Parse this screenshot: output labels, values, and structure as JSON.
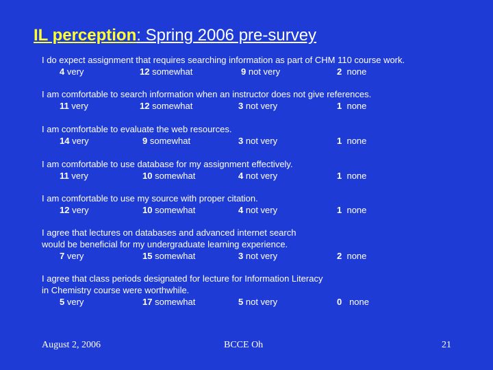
{
  "slide": {
    "title_highlight": "IL perception",
    "title_rest": ": Spring 2006 pre-survey ",
    "questions": [
      {
        "lines": [
          "I do expect assignment that requires searching information as part of CHM 110 course work."
        ],
        "answers": [
          {
            "count": "4",
            "label": "very"
          },
          {
            "count": "12",
            "label": "somewhat"
          },
          {
            "count": "9",
            "label": "not very"
          },
          {
            "count": "2",
            "label": "none"
          }
        ]
      },
      {
        "lines": [
          "I am comfortable to search information when an instructor does not give references."
        ],
        "answers": [
          {
            "count": "11",
            "label": "very"
          },
          {
            "count": "12",
            "label": "somewhat"
          },
          {
            "count": "3",
            "label": "not very"
          },
          {
            "count": "1",
            "label": "none"
          }
        ]
      },
      {
        "lines": [
          "I am comfortable to evaluate the web resources."
        ],
        "answers": [
          {
            "count": "14",
            "label": "very"
          },
          {
            "count": "9",
            "label": "somewhat"
          },
          {
            "count": "3",
            "label": "not very"
          },
          {
            "count": "1",
            "label": "none"
          }
        ]
      },
      {
        "lines": [
          "I am comfortable to use database for my assignment effectively."
        ],
        "answers": [
          {
            "count": "11",
            "label": "very"
          },
          {
            "count": "10",
            "label": "somewhat"
          },
          {
            "count": "4",
            "label": "not very"
          },
          {
            "count": "1",
            "label": "none"
          }
        ]
      },
      {
        "lines": [
          "I am comfortable to use my source with proper citation."
        ],
        "answers": [
          {
            "count": "12",
            "label": "very"
          },
          {
            "count": "10",
            "label": "somewhat"
          },
          {
            "count": "4",
            "label": "not very"
          },
          {
            "count": "1",
            "label": "none"
          }
        ]
      },
      {
        "lines": [
          "I agree that lectures on databases and advanced internet search",
          "would be beneficial for my undergraduate learning experience."
        ],
        "answers": [
          {
            "count": "7",
            "label": "very"
          },
          {
            "count": "15",
            "label": "somewhat"
          },
          {
            "count": "3",
            "label": "not very"
          },
          {
            "count": "2",
            "label": "none"
          }
        ]
      },
      {
        "lines": [
          "I agree that class periods designated for lecture for Information Literacy",
          "in Chemistry course were worthwhile."
        ],
        "answers": [
          {
            "count": "5",
            "label": "very"
          },
          {
            "count": "17",
            "label": "somewhat"
          },
          {
            "count": "5",
            "label": "not very"
          },
          {
            "count": "0",
            "label": "none"
          }
        ]
      }
    ]
  },
  "footer": {
    "date": "August 2, 2006",
    "center": "BCCE   Oh",
    "page": "21"
  },
  "colors": {
    "background": "#1f3bd6",
    "title_highlight": "#ffff33",
    "text": "#ffffff"
  }
}
